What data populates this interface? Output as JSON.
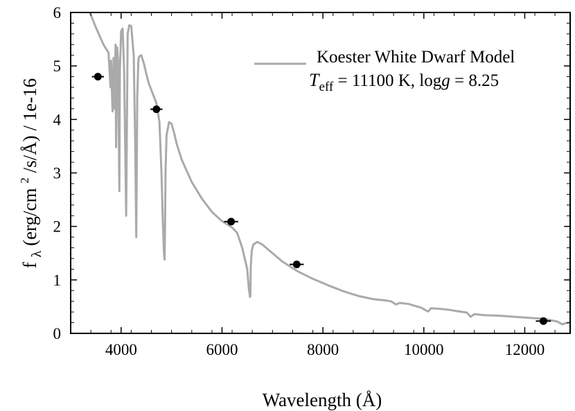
{
  "chart_data": {
    "type": "line",
    "title": "",
    "xlabel": "Wavelength (Å)",
    "ylabel": "fλ (erg/cm² /s/Å) / 1e-16",
    "ylabel_parts": {
      "f": "f",
      "lambda": "λ",
      "unit_open": " (erg/cm",
      "sq": "2",
      "unit_close": " /s/Å) / 1e-16"
    },
    "xlim": [
      3000,
      12900
    ],
    "ylim": [
      0,
      6
    ],
    "xticks": [
      4000,
      6000,
      8000,
      10000,
      12000
    ],
    "yticks": [
      0,
      1,
      2,
      3,
      4,
      5,
      6
    ],
    "grid": false,
    "legend_position": "top-right",
    "model": {
      "name": "Koester White Dwarf Model",
      "color": "#aaaaaa",
      "params_line": {
        "T": "T",
        "eff": "eff",
        "teff_value": " = 11100 K, log",
        "g": "g",
        "logg_value": " = 8.25"
      },
      "x": [
        3380,
        3500,
        3650,
        3750,
        3790,
        3800,
        3830,
        3850,
        3870,
        3890,
        3900,
        3920,
        3940,
        3965,
        3975,
        4000,
        4030,
        4060,
        4100,
        4130,
        4160,
        4200,
        4250,
        4280,
        4300,
        4310,
        4320,
        4340,
        4345,
        4360,
        4400,
        4450,
        4500,
        4550,
        4600,
        4700,
        4760,
        4800,
        4830,
        4850,
        4861,
        4870,
        4880,
        4900,
        4950,
        5000,
        5050,
        5100,
        5200,
        5400,
        5600,
        5800,
        6000,
        6200,
        6300,
        6400,
        6450,
        6500,
        6530,
        6555,
        6562,
        6570,
        6590,
        6620,
        6700,
        6800,
        7000,
        7200,
        7500,
        7800,
        8100,
        8400,
        8700,
        9000,
        9200,
        9350,
        9450,
        9520,
        9600,
        9700,
        9800,
        9950,
        10040,
        10090,
        10140,
        10300,
        10500,
        10700,
        10850,
        10930,
        11000,
        11200,
        11500,
        11800,
        12100,
        12400,
        12500,
        12650,
        12720,
        12760,
        12800,
        12880
      ],
      "y": [
        6.0,
        5.72,
        5.4,
        5.25,
        4.6,
        5.1,
        4.15,
        5.15,
        4.2,
        5.4,
        3.48,
        5.35,
        5.1,
        2.66,
        4.9,
        5.65,
        5.7,
        4.9,
        2.2,
        5.6,
        5.76,
        5.75,
        5.2,
        3.5,
        1.8,
        3.0,
        4.4,
        5.05,
        5.13,
        5.18,
        5.2,
        5.05,
        4.85,
        4.67,
        4.55,
        4.3,
        3.95,
        3.0,
        2.0,
        1.5,
        1.38,
        1.9,
        3.0,
        3.7,
        3.95,
        3.92,
        3.75,
        3.55,
        3.25,
        2.83,
        2.52,
        2.27,
        2.1,
        1.98,
        1.88,
        1.6,
        1.4,
        1.2,
        0.85,
        0.68,
        0.7,
        1.25,
        1.55,
        1.66,
        1.71,
        1.66,
        1.5,
        1.34,
        1.16,
        1.02,
        0.9,
        0.79,
        0.7,
        0.64,
        0.62,
        0.6,
        0.54,
        0.57,
        0.56,
        0.55,
        0.52,
        0.48,
        0.43,
        0.41,
        0.47,
        0.46,
        0.44,
        0.41,
        0.39,
        0.31,
        0.36,
        0.34,
        0.33,
        0.31,
        0.29,
        0.27,
        0.25,
        0.22,
        0.18,
        0.17,
        0.19,
        0.2
      ]
    },
    "observations": {
      "color": "#000000",
      "points": [
        {
          "x": 3540,
          "y": 4.8,
          "xerr": 120,
          "yerr": 0.03
        },
        {
          "x": 4700,
          "y": 4.19,
          "xerr": 120,
          "yerr": 0.03
        },
        {
          "x": 6180,
          "y": 2.09,
          "xerr": 140,
          "yerr": 0.03
        },
        {
          "x": 7480,
          "y": 1.29,
          "xerr": 140,
          "yerr": 0.02
        },
        {
          "x": 12370,
          "y": 0.23,
          "xerr": 150,
          "yerr": 0.02
        }
      ]
    }
  }
}
